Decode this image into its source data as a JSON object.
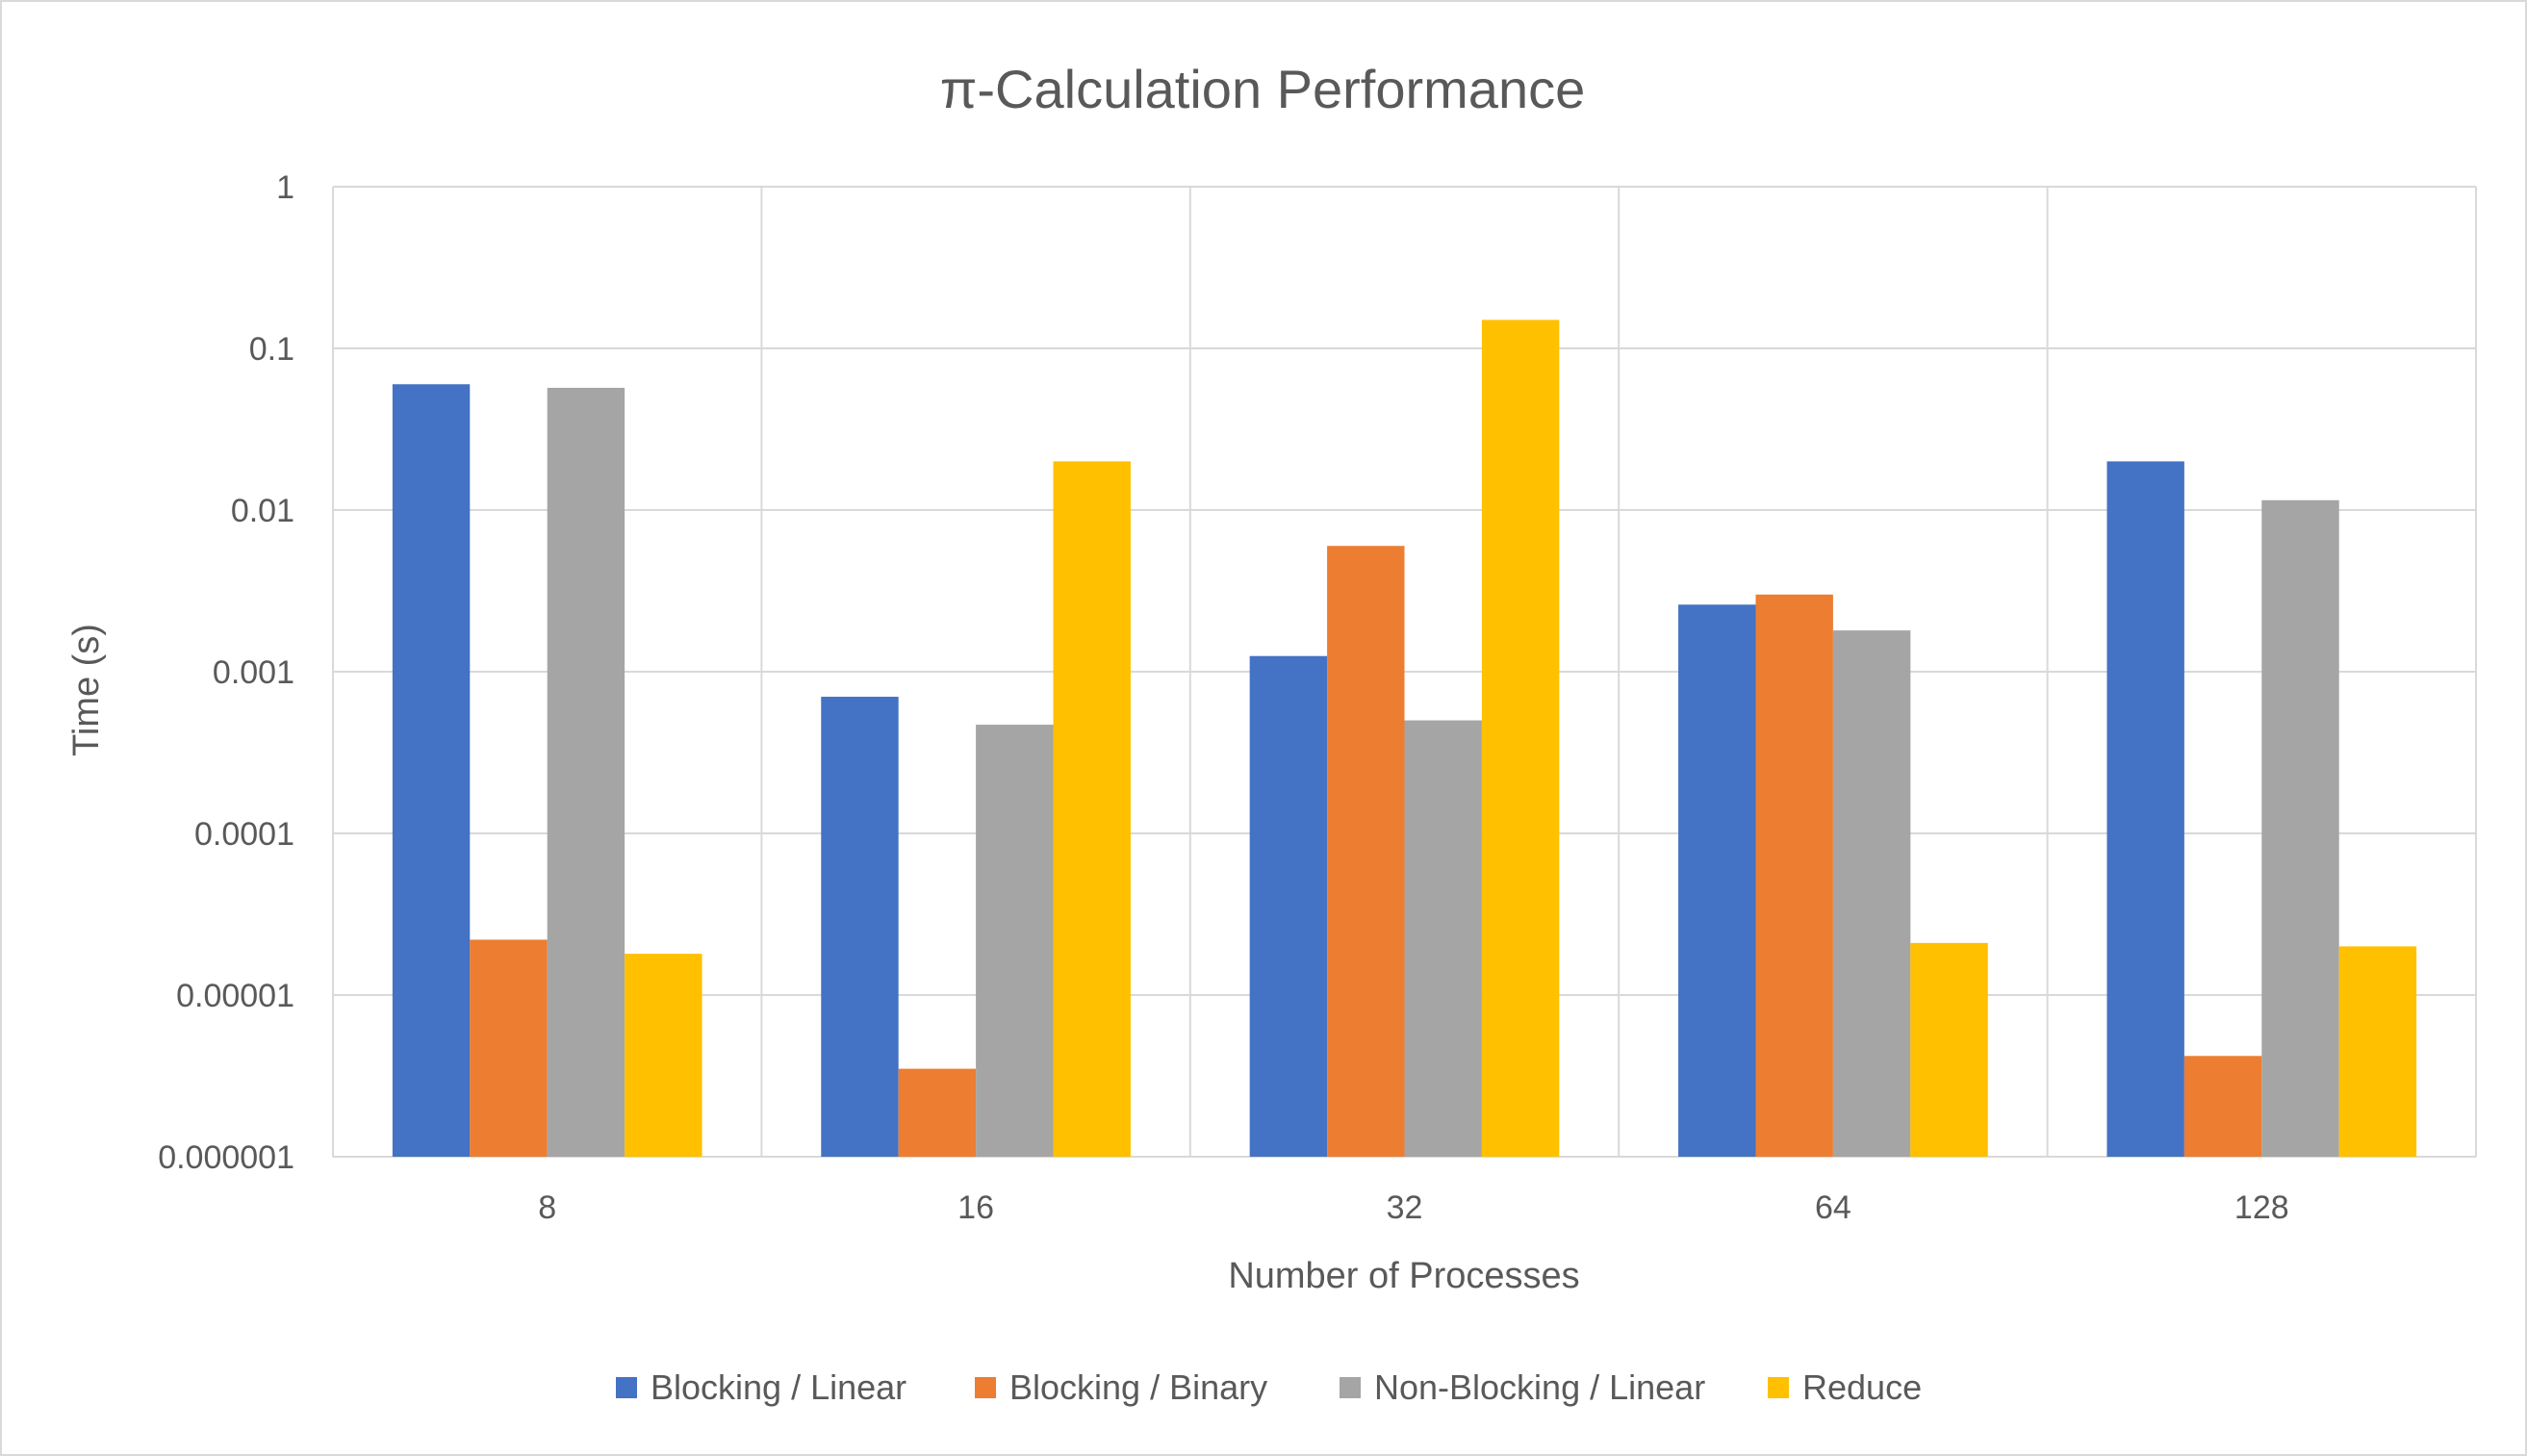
{
  "chart_data": {
    "type": "bar",
    "title": "π-Calculation Performance",
    "xlabel": "Number of Processes",
    "ylabel": "Time (s)",
    "yscale": "log",
    "ylim": [
      1e-06,
      1
    ],
    "yticks": [
      "1",
      "0.1",
      "0.01",
      "0.001",
      "0.0001",
      "0.00001",
      "0.000001"
    ],
    "ytick_values": [
      1,
      0.1,
      0.01,
      0.001,
      0.0001,
      1e-05,
      1e-06
    ],
    "categories": [
      "8",
      "16",
      "32",
      "64",
      "128"
    ],
    "series": [
      {
        "name": "Blocking / Linear",
        "color": "#4472C4",
        "values": [
          0.06,
          0.0007,
          0.00125,
          0.0026,
          0.02
        ]
      },
      {
        "name": "Blocking / Binary",
        "color": "#ED7D31",
        "values": [
          2.2e-05,
          3.5e-06,
          0.006,
          0.003,
          4.2e-06
        ]
      },
      {
        "name": "Non-Blocking / Linear",
        "color": "#A5A5A5",
        "values": [
          0.057,
          0.00047,
          0.0005,
          0.0018,
          0.0115
        ]
      },
      {
        "name": "Reduce",
        "color": "#FFC000",
        "values": [
          1.8e-05,
          0.02,
          0.15,
          2.1e-05,
          2e-05
        ]
      }
    ],
    "grid": true,
    "legend_position": "bottom"
  }
}
